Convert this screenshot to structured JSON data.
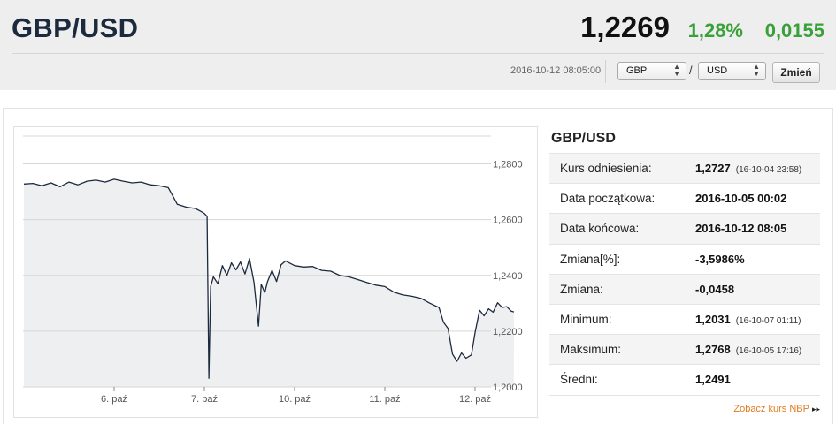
{
  "header": {
    "pair": "GBP/USD",
    "rate": "1,2269",
    "change_percent": "1,28%",
    "change_value": "0,0155",
    "timestamp": "2016-10-12 08:05:00",
    "from_currency": "GBP",
    "to_currency": "USD",
    "slash": "/",
    "change_button": "Zmień",
    "colors": {
      "positive": "#3aa13a",
      "background": "#eeeeee"
    }
  },
  "info": {
    "title": "GBP/USD",
    "rows": [
      {
        "label": "Kurs odniesienia:",
        "value": "1,2727",
        "note": "(16-10-04 23:58)"
      },
      {
        "label": "Data początkowa:",
        "value": "2016-10-05 00:02",
        "note": ""
      },
      {
        "label": "Data końcowa:",
        "value": "2016-10-12 08:05",
        "note": ""
      },
      {
        "label": "Zmiana[%]:",
        "value": "-3,5986%",
        "note": ""
      },
      {
        "label": "Zmiana:",
        "value": "-0,0458",
        "note": ""
      },
      {
        "label": "Minimum:",
        "value": "1,2031",
        "note": "(16-10-07 01:11)"
      },
      {
        "label": "Maksimum:",
        "value": "1,2768",
        "note": "(16-10-05 17:16)"
      },
      {
        "label": "Średni:",
        "value": "1,2491",
        "note": ""
      }
    ],
    "link": "Zobacz kurs NBP",
    "link_arrow": "▸▸"
  },
  "chart_data": {
    "type": "area",
    "line_color": "#1c2a3e",
    "fill_color": "#eeeff1",
    "ylim": [
      1.2,
      1.29
    ],
    "y_ticks": [
      {
        "value": 1.28,
        "label": "1,2800"
      },
      {
        "value": 1.26,
        "label": "1,2600"
      },
      {
        "value": 1.24,
        "label": "1,2400"
      },
      {
        "value": 1.22,
        "label": "1,2200"
      },
      {
        "value": 1.2,
        "label": "1,2000"
      }
    ],
    "x_ticks": [
      {
        "position": 1.0,
        "label": "6. paź"
      },
      {
        "position": 2.0,
        "label": "7. paź"
      },
      {
        "position": 3.0,
        "label": "10. paź"
      },
      {
        "position": 4.0,
        "label": "11. paź"
      },
      {
        "position": 5.0,
        "label": "12. paź"
      }
    ],
    "x_range": [
      0.0,
      5.43
    ],
    "points": [
      [
        0.0,
        1.2728
      ],
      [
        0.1,
        1.273
      ],
      [
        0.2,
        1.2722
      ],
      [
        0.3,
        1.2732
      ],
      [
        0.4,
        1.2718
      ],
      [
        0.5,
        1.2735
      ],
      [
        0.6,
        1.2725
      ],
      [
        0.7,
        1.2738
      ],
      [
        0.8,
        1.2742
      ],
      [
        0.9,
        1.2735
      ],
      [
        1.0,
        1.2745
      ],
      [
        1.1,
        1.2738
      ],
      [
        1.2,
        1.2732
      ],
      [
        1.3,
        1.2735
      ],
      [
        1.4,
        1.2725
      ],
      [
        1.5,
        1.2722
      ],
      [
        1.6,
        1.2715
      ],
      [
        1.65,
        1.2685
      ],
      [
        1.7,
        1.2655
      ],
      [
        1.8,
        1.2645
      ],
      [
        1.9,
        1.264
      ],
      [
        1.96,
        1.263
      ],
      [
        2.0,
        1.2622
      ],
      [
        2.03,
        1.2612
      ],
      [
        2.05,
        1.2031
      ],
      [
        2.07,
        1.236
      ],
      [
        2.1,
        1.2395
      ],
      [
        2.15,
        1.237
      ],
      [
        2.2,
        1.2435
      ],
      [
        2.25,
        1.24
      ],
      [
        2.3,
        1.2445
      ],
      [
        2.35,
        1.242
      ],
      [
        2.4,
        1.2448
      ],
      [
        2.45,
        1.2405
      ],
      [
        2.5,
        1.246
      ],
      [
        2.55,
        1.2375
      ],
      [
        2.6,
        1.2218
      ],
      [
        2.63,
        1.2368
      ],
      [
        2.67,
        1.2338
      ],
      [
        2.7,
        1.2378
      ],
      [
        2.75,
        1.2418
      ],
      [
        2.8,
        1.2378
      ],
      [
        2.85,
        1.2438
      ],
      [
        2.9,
        1.2452
      ],
      [
        3.0,
        1.2435
      ],
      [
        3.1,
        1.243
      ],
      [
        3.2,
        1.2432
      ],
      [
        3.3,
        1.2418
      ],
      [
        3.4,
        1.2415
      ],
      [
        3.5,
        1.24
      ],
      [
        3.6,
        1.2395
      ],
      [
        3.7,
        1.2385
      ],
      [
        3.8,
        1.2375
      ],
      [
        3.9,
        1.2365
      ],
      [
        4.0,
        1.236
      ],
      [
        4.1,
        1.234
      ],
      [
        4.2,
        1.233
      ],
      [
        4.3,
        1.2325
      ],
      [
        4.4,
        1.2318
      ],
      [
        4.5,
        1.23
      ],
      [
        4.6,
        1.2285
      ],
      [
        4.65,
        1.2232
      ],
      [
        4.7,
        1.221
      ],
      [
        4.75,
        1.2118
      ],
      [
        4.8,
        1.2092
      ],
      [
        4.85,
        1.2122
      ],
      [
        4.9,
        1.2103
      ],
      [
        4.96,
        1.2115
      ],
      [
        5.0,
        1.2195
      ],
      [
        5.05,
        1.2275
      ],
      [
        5.1,
        1.2255
      ],
      [
        5.15,
        1.228
      ],
      [
        5.2,
        1.2268
      ],
      [
        5.25,
        1.2302
      ],
      [
        5.3,
        1.2285
      ],
      [
        5.35,
        1.2288
      ],
      [
        5.4,
        1.2272
      ],
      [
        5.43,
        1.2269
      ]
    ]
  }
}
